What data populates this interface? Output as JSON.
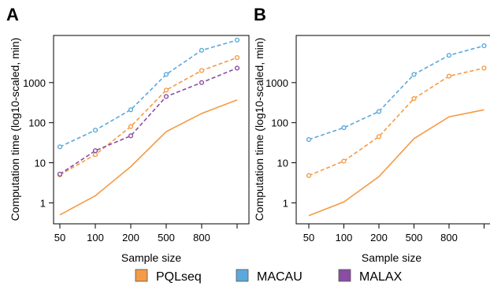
{
  "chart_data": [
    {
      "panel": "A",
      "type": "line",
      "xlabel": "Sample size",
      "ylabel": "Computation time (log10-scaled, min)",
      "categories": [
        "50",
        "100",
        "200",
        "500",
        "800",
        ""
      ],
      "yscale": "log10",
      "ylim": [
        0.3,
        15000
      ],
      "yticks": [
        "1",
        "10",
        "100",
        "1000"
      ],
      "series": [
        {
          "name": "PQLseq",
          "style": "solid",
          "color": "#f59a45",
          "values": [
            0.5,
            1.5,
            8,
            60,
            170,
            370
          ]
        },
        {
          "name": "PQLseq",
          "style": "dashed-circles",
          "color": "#f59a45",
          "values": [
            5,
            16,
            80,
            650,
            2000,
            4200
          ]
        },
        {
          "name": "MACAU",
          "style": "dashed-circles",
          "color": "#5ba8dc",
          "values": [
            25,
            65,
            210,
            1600,
            6400,
            11500
          ]
        },
        {
          "name": "MALAX",
          "style": "dashed-circles",
          "color": "#8b4ca3",
          "values": [
            5.2,
            20,
            47,
            450,
            1000,
            2300
          ]
        }
      ]
    },
    {
      "panel": "B",
      "type": "line",
      "xlabel": "Sample size",
      "ylabel": "Computation time (log10-scaled, min)",
      "categories": [
        "50",
        "100",
        "200",
        "500",
        "800",
        ""
      ],
      "yscale": "log10",
      "ylim": [
        0.3,
        15000
      ],
      "yticks": [
        "1",
        "10",
        "100",
        "1000"
      ],
      "series": [
        {
          "name": "PQLseq",
          "style": "solid",
          "color": "#f59a45",
          "values": [
            0.48,
            1.05,
            4.5,
            40,
            140,
            210
          ]
        },
        {
          "name": "PQLseq",
          "style": "dashed-circles",
          "color": "#f59a45",
          "values": [
            4.8,
            11,
            45,
            400,
            1450,
            2300
          ]
        },
        {
          "name": "MACAU",
          "style": "dashed-circles",
          "color": "#5ba8dc",
          "values": [
            38,
            75,
            190,
            1600,
            4800,
            8300
          ]
        }
      ]
    }
  ],
  "legend": {
    "placement": "bottom",
    "items": [
      {
        "label": "PQLseq",
        "color": "#f59a45"
      },
      {
        "label": "MACAU",
        "color": "#5ba8dc"
      },
      {
        "label": "MALAX",
        "color": "#8b4ca3"
      }
    ]
  }
}
